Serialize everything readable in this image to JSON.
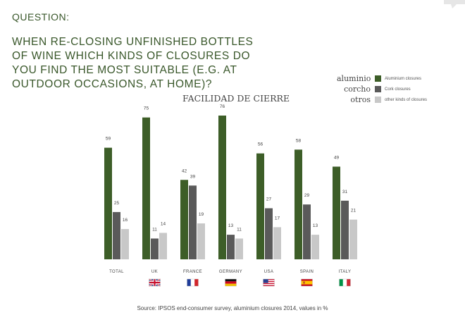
{
  "header": {
    "question_label": "QUESTION:",
    "headline_lines": [
      "WHEN RE-CLOSING UNFINISHED BOTTLES",
      "OF WINE WHICH KINDS OF CLOSURES DO",
      "YOU FIND THE MOST SUITABLE (E.G. AT",
      "OUTDOOR OCCASIONS, AT HOME)?"
    ]
  },
  "chart_subtitle": "FACILIDAD DE CIERRE",
  "legend": [
    {
      "alias": "aluminio",
      "label": "Aluminium closures",
      "color": "#3d5e28"
    },
    {
      "alias": "corcho",
      "label": "Cork closures",
      "color": "#5a5a5a"
    },
    {
      "alias": "otros",
      "label": "other kinds of closures",
      "color": "#c8c8c8"
    }
  ],
  "chart_data": {
    "type": "bar",
    "categories": [
      "TOTAL",
      "UK",
      "FRANCE",
      "GERMANY",
      "USA",
      "SPAIN",
      "ITALY"
    ],
    "series": [
      {
        "name": "Aluminium closures",
        "color": "#3d5e28",
        "values": [
          59,
          75,
          42,
          76,
          56,
          58,
          49
        ]
      },
      {
        "name": "Cork closures",
        "color": "#5a5a5a",
        "values": [
          25,
          11,
          39,
          13,
          27,
          29,
          31
        ]
      },
      {
        "name": "other kinds of closures",
        "color": "#c8c8c8",
        "values": [
          16,
          14,
          19,
          11,
          17,
          13,
          21
        ]
      }
    ],
    "ylim": [
      0,
      80
    ],
    "grid": false,
    "data_labels": true,
    "legend_position": "top-right",
    "category_flags": [
      "",
      "uk-flag",
      "france-flag",
      "germany-flag",
      "usa-flag",
      "spain-flag",
      "italy-flag"
    ]
  },
  "source": "Source: IPSOS end-consumer survey, aluminium closures 2014, values in %"
}
